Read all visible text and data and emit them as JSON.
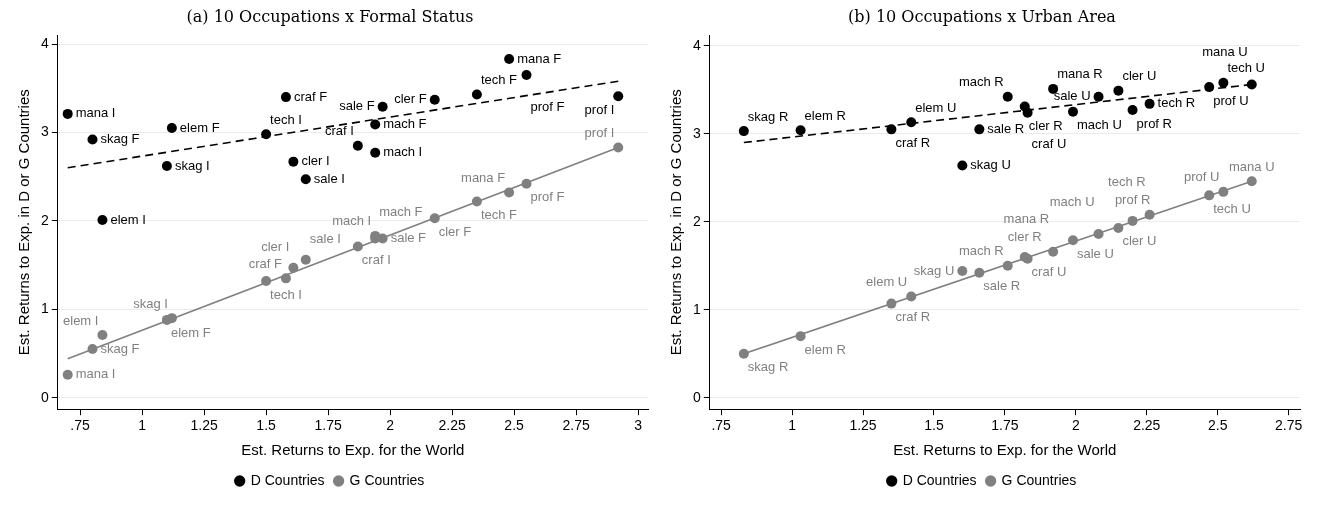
{
  "chart_data": [
    {
      "type": "scatter",
      "title": "(a) 10 Occupations x Formal Status",
      "xlabel": "Est. Returns to Exp. for the World",
      "ylabel": "Est. Returns to Exp. in D or G Countries",
      "xlim": [
        0.66,
        3.04
      ],
      "ylim": [
        -0.13,
        4.1
      ],
      "xticks": [
        {
          "value": 0.75,
          "label": ".75"
        },
        1,
        1.25,
        1.5,
        1.75,
        2,
        2.25,
        2.5,
        2.75,
        3
      ],
      "yticks": [
        0,
        1,
        2,
        3,
        4
      ],
      "grid": "y",
      "legend": "bottom",
      "marker": "circle",
      "series": [
        {
          "name": "D Countries",
          "color": "#000000",
          "x": [
            0.7,
            0.8,
            0.84,
            1.1,
            1.12,
            1.5,
            1.58,
            1.61,
            1.66,
            1.87,
            1.94,
            1.94,
            1.97,
            2.18,
            2.35,
            2.48,
            2.55,
            2.92
          ],
          "values": [
            3.21,
            2.92,
            2.01,
            2.62,
            3.05,
            2.98,
            3.4,
            2.67,
            2.47,
            2.85,
            2.77,
            3.09,
            3.29,
            3.37,
            3.43,
            3.83,
            3.65,
            3.41
          ],
          "value_labels": [
            "mana I",
            "skag F",
            "elem I",
            "skag I",
            "elem F",
            "tech I",
            "craf F",
            "cler I",
            "sale I",
            "craf I",
            "mach I",
            "mach F",
            "sale F",
            "cler F",
            "tech F",
            "mana F",
            "prof F",
            "prof I"
          ]
        },
        {
          "name": "G Countries",
          "color": "#808080",
          "x": [
            0.7,
            0.8,
            0.84,
            1.1,
            1.12,
            1.5,
            1.58,
            1.61,
            1.66,
            1.87,
            1.94,
            1.94,
            1.97,
            2.18,
            2.35,
            2.48,
            2.55,
            2.92
          ],
          "values": [
            0.26,
            0.55,
            0.71,
            0.88,
            0.9,
            1.32,
            1.35,
            1.47,
            1.56,
            1.71,
            1.83,
            1.8,
            1.8,
            2.03,
            2.22,
            2.32,
            2.42,
            2.83
          ],
          "value_labels": [
            "mana I",
            "skag F",
            "elem I",
            "elem F",
            "skag I",
            "tech I",
            "craf F",
            "cler I",
            "sale I",
            "craf I",
            "mach I",
            "mach F",
            "sale F",
            "cler F",
            "tech F",
            "mana F",
            "prof F",
            "prof I"
          ]
        },
        {
          "type": "line",
          "color": "#000000",
          "line_style": "dashed",
          "marker": "none",
          "x": [
            0.7,
            2.92
          ],
          "values": [
            2.6,
            3.58
          ]
        },
        {
          "type": "line",
          "color": "#808080",
          "line_style": "solid",
          "marker": "none",
          "x": [
            0.7,
            2.92
          ],
          "values": [
            0.44,
            2.83
          ]
        }
      ]
    },
    {
      "type": "scatter",
      "title": "(b) 10 Occupations x Urban Area",
      "xlabel": "Est. Returns to Exp. for the World",
      "ylabel": "Est. Returns to Exp. in D or G Countries",
      "xlim": [
        0.71,
        2.79
      ],
      "ylim": [
        -0.13,
        4.12
      ],
      "xticks": [
        {
          "value": 0.75,
          "label": ".75"
        },
        1,
        1.25,
        1.5,
        1.75,
        2,
        2.25,
        2.5,
        2.75
      ],
      "yticks": [
        0,
        1,
        2,
        3,
        4
      ],
      "grid": "y",
      "legend": "bottom",
      "marker": "circle",
      "series": [
        {
          "name": "D Countries",
          "color": "#000000",
          "x": [
            0.83,
            1.03,
            1.35,
            1.42,
            1.6,
            1.66,
            1.76,
            1.82,
            1.83,
            1.92,
            1.99,
            2.08,
            2.15,
            2.2,
            2.26,
            2.47,
            2.52,
            2.62
          ],
          "values": [
            3.03,
            3.04,
            3.05,
            3.13,
            2.64,
            3.05,
            3.42,
            3.31,
            3.24,
            3.51,
            3.25,
            3.42,
            3.49,
            3.27,
            3.34,
            3.53,
            3.58,
            3.56
          ],
          "value_labels": [
            "skag R",
            "elem R",
            "craf R",
            "elem U",
            "skag U",
            "sale R",
            "mach R",
            "cler R",
            "craf U",
            "mana R",
            "mach U",
            "sale U",
            "cler U",
            "prof R",
            "tech R",
            "prof U",
            "tech U",
            "mana U"
          ]
        },
        {
          "name": "G Countries",
          "color": "#808080",
          "x": [
            0.83,
            1.03,
            1.35,
            1.42,
            1.6,
            1.66,
            1.76,
            1.82,
            1.83,
            1.92,
            1.99,
            2.08,
            2.15,
            2.2,
            2.26,
            2.47,
            2.52,
            2.62
          ],
          "values": [
            0.5,
            0.7,
            1.07,
            1.15,
            1.44,
            1.42,
            1.5,
            1.6,
            1.58,
            1.66,
            1.79,
            1.86,
            1.93,
            2.01,
            2.08,
            2.3,
            2.34,
            2.46
          ],
          "value_labels": [
            "skag R",
            "elem R",
            "craf R",
            "elem U",
            "skag U",
            "sale R",
            "mach R",
            "cler R",
            "craf U",
            "mana R",
            "sale U",
            "mach U",
            "cler U",
            "prof R",
            "tech R",
            "tech U",
            "prof U",
            "mana U"
          ]
        },
        {
          "type": "line",
          "color": "#000000",
          "line_style": "dashed",
          "marker": "none",
          "x": [
            0.83,
            2.62
          ],
          "values": [
            2.9,
            3.56
          ]
        },
        {
          "type": "line",
          "color": "#808080",
          "line_style": "solid",
          "marker": "none",
          "x": [
            0.83,
            2.62
          ],
          "values": [
            0.5,
            2.46
          ]
        }
      ]
    }
  ]
}
